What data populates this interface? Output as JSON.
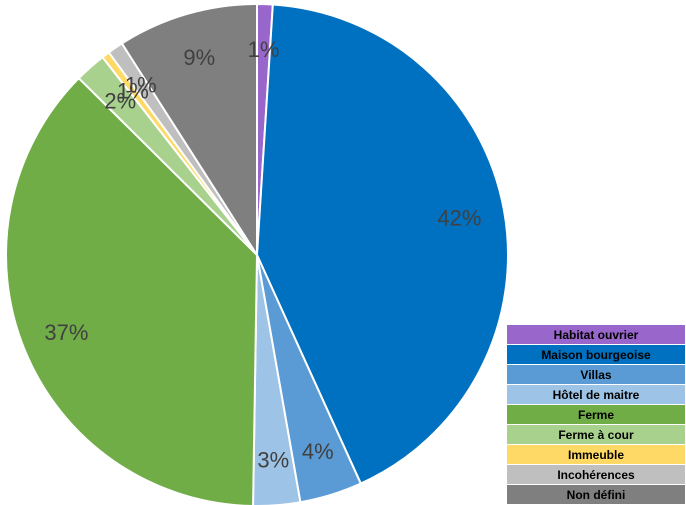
{
  "chart_data": {
    "type": "pie",
    "title": "",
    "slices": [
      {
        "label": "Habitat ouvrier",
        "value": 1,
        "display": "1%",
        "color": "#9966CC"
      },
      {
        "label": "Maison bourgeoise",
        "value": 42,
        "display": "42%",
        "color": "#0070C0"
      },
      {
        "label": "Villas",
        "value": 4,
        "display": "4%",
        "color": "#5B9BD5"
      },
      {
        "label": "Hôtel de maitre",
        "value": 3,
        "display": "3%",
        "color": "#9DC3E6"
      },
      {
        "label": "Ferme",
        "value": 37,
        "display": "37%",
        "color": "#70AD47"
      },
      {
        "label": "Ferme à cour",
        "value": 2,
        "display": "2%",
        "color": "#A9D18E"
      },
      {
        "label": "Immeuble",
        "value": 0.5,
        "display": "1%",
        "color": "#FFD966"
      },
      {
        "label": "Incohérences",
        "value": 1,
        "display": "1%",
        "color": "#BFBFBF"
      },
      {
        "label": "Non défini",
        "value": 9,
        "display": "9%",
        "color": "#7F7F7F"
      }
    ],
    "legend_position": "bottom-right",
    "start_angle": "top, clockwise"
  }
}
